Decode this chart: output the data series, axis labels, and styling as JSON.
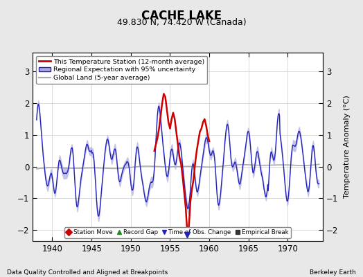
{
  "title": "CACHE LAKE",
  "subtitle": "49.830 N, 74.420 W (Canada)",
  "xlabel_note": "Data Quality Controlled and Aligned at Breakpoints",
  "xlabel_right": "Berkeley Earth",
  "ylabel": "Temperature Anomaly (°C)",
  "xlim": [
    1937.5,
    1974.5
  ],
  "ylim": [
    -2.35,
    3.6
  ],
  "yticks": [
    -2,
    -1,
    0,
    1,
    2,
    3
  ],
  "xticks": [
    1940,
    1945,
    1950,
    1955,
    1960,
    1965,
    1970
  ],
  "bg_color": "#e8e8e8",
  "plot_bg_color": "#ffffff",
  "regional_color": "#2222bb",
  "regional_fill_color": "#aaaadd",
  "station_color": "#cc0000",
  "global_color": "#aaaaaa",
  "legend1_items": [
    {
      "label": "This Temperature Station (12-month average)",
      "color": "#cc0000",
      "lw": 2
    },
    {
      "label": "Regional Expectation with 95% uncertainty",
      "color": "#2222bb",
      "fill": "#aaaadd"
    },
    {
      "label": "Global Land (5-year average)",
      "color": "#aaaaaa",
      "lw": 1.5
    }
  ],
  "legend2_items": [
    {
      "label": "Station Move",
      "marker": "D",
      "color": "#cc0000"
    },
    {
      "label": "Record Gap",
      "marker": "^",
      "color": "#228822"
    },
    {
      "label": "Time of Obs. Change",
      "marker": "v",
      "color": "#2222bb"
    },
    {
      "label": "Empirical Break",
      "marker": "s",
      "color": "#333333"
    }
  ]
}
